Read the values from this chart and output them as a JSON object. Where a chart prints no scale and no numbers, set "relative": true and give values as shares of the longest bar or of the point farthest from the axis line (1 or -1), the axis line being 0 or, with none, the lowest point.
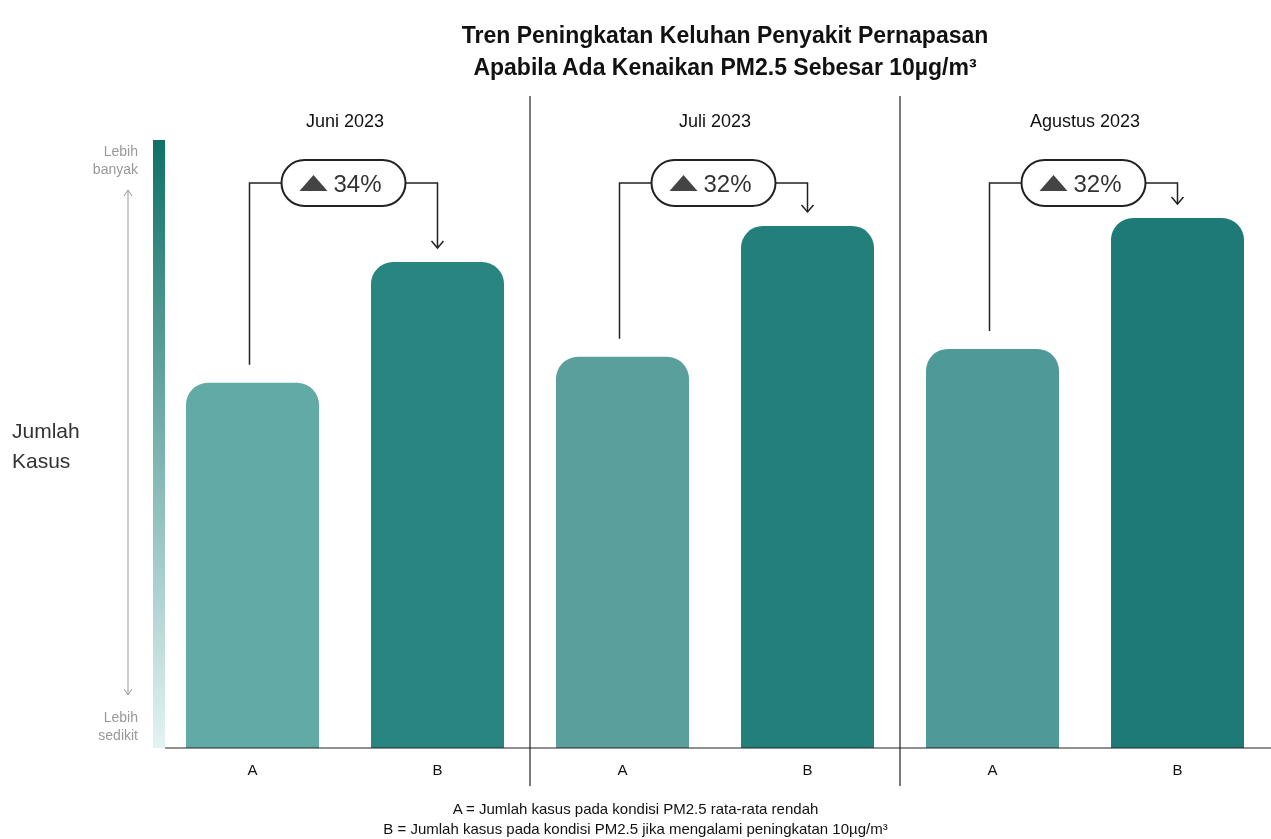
{
  "chart_data": {
    "type": "bar",
    "title": "Tren Peningkatan Keluhan Penyakit Pernapasan\nApabila Ada Kenaikan PM2.5 Sebesar 10µg/m³",
    "ylabel": "Jumlah Kasus",
    "categories": [
      "A",
      "B",
      "A",
      "B",
      "A",
      "B"
    ],
    "values": [
      0.689,
      0.917,
      0.738,
      0.985,
      0.753,
      1
    ],
    "colors": [
      "#62aaa6",
      "#288580",
      "#5a9f9c",
      "#227f7a",
      "#4f9a98",
      "#1d7a76"
    ],
    "relative": true,
    "grid": false,
    "annotations": [
      "Juni 2023",
      "Juli 2023",
      "Agustus 2023",
      "34%",
      "32%",
      "32%",
      "Lebih banyak",
      "Lebih sedikit",
      "A = Jumlah kasus pada kondisi PM2.5 rata-rata rendah",
      "B = Jumlah kasus pada kondisi PM2.5 jika mengalami peningkatan 10µg/m³"
    ]
  }
}
